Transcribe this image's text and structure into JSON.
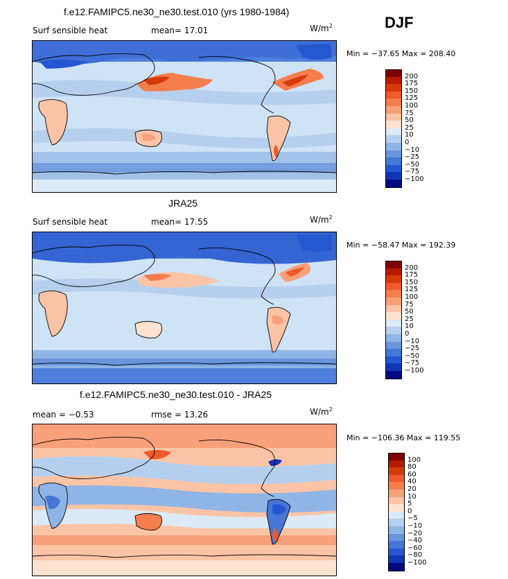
{
  "season": "DJF",
  "units_prefix": "W/m",
  "units_exp": "2",
  "panels": [
    {
      "title": "f.e12.FAMIPC5.ne30_ne30.test.010 (yrs 1980-1984)",
      "left_label": "Surf sensible heat",
      "mid_label": "mean=  17.01",
      "minmax": "Min = −37.65 Max = 208.40",
      "colorbar": {
        "levels": [
          "200",
          "175",
          "150",
          "125",
          "100",
          "75",
          "50",
          "25",
          "10",
          "0",
          "−10",
          "−25",
          "−50",
          "−75",
          "−100"
        ],
        "colors": [
          "#7f0000",
          "#b81a00",
          "#d73a0a",
          "#ee5a2a",
          "#f57e4e",
          "#f8a07a",
          "#fbc4a6",
          "#fde3d0",
          "#dce9f6",
          "#b5d0ee",
          "#8fb4e6",
          "#6a95dc",
          "#4676d6",
          "#2457d0",
          "#1035b8",
          "#000a80"
        ]
      }
    },
    {
      "title": "JRA25",
      "left_label": "Surf sensible heat",
      "mid_label": "mean=  17.55",
      "minmax": "Min = −58.47 Max = 192.39",
      "colorbar": {
        "levels": [
          "200",
          "175",
          "150",
          "125",
          "100",
          "75",
          "50",
          "25",
          "10",
          "0",
          "−10",
          "−25",
          "−50",
          "−75",
          "−100"
        ],
        "colors": [
          "#7f0000",
          "#b81a00",
          "#d73a0a",
          "#ee5a2a",
          "#f57e4e",
          "#f8a07a",
          "#fbc4a6",
          "#fde3d0",
          "#dce9f6",
          "#b5d0ee",
          "#8fb4e6",
          "#6a95dc",
          "#4676d6",
          "#2457d0",
          "#1035b8",
          "#000a80"
        ]
      }
    },
    {
      "title": "f.e12.FAMIPC5.ne30_ne30.test.010 - JRA25",
      "left_label": "mean =  −0.53",
      "mid_label": "rmse =  13.26",
      "minmax": "Min = −106.36 Max = 119.55",
      "colorbar": {
        "levels": [
          "100",
          "80",
          "60",
          "40",
          "20",
          "10",
          "5",
          "0",
          "−5",
          "−10",
          "−20",
          "−40",
          "−60",
          "−80",
          "−100"
        ],
        "colors": [
          "#7f0000",
          "#b81a00",
          "#d73a0a",
          "#ee5a2a",
          "#f57e4e",
          "#f8a07a",
          "#fbc4a6",
          "#fde3d0",
          "#dce9f6",
          "#b5d0ee",
          "#8fb4e6",
          "#6a95dc",
          "#4676d6",
          "#2457d0",
          "#1035b8",
          "#000a80"
        ]
      }
    }
  ]
}
